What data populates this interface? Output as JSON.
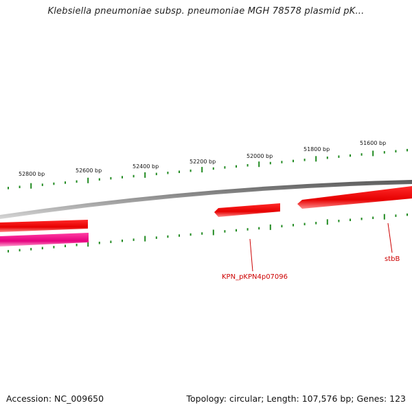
{
  "title": "Klebsiella pneumoniae subsp. pneumoniae MGH 78578 plasmid pK...",
  "colors": {
    "backbone": "#8a8a8a",
    "tick": "#228b22",
    "forward_gene": "#ff0000",
    "reverse_gene": "#ff1493",
    "gene_label": "#cc0000"
  },
  "scale": {
    "labels": [
      "52800 bp",
      "52600 bp",
      "52400 bp",
      "52200 bp",
      "52000 bp",
      "51800 bp",
      "51600 bp"
    ]
  },
  "genes": [
    {
      "label": "KPN_pKPN4p07096",
      "strand": "forward"
    },
    {
      "label": "stbB",
      "strand": "forward"
    }
  ],
  "footer": {
    "accession": "Accession: NC_009650",
    "summary": "Topology: circular; Length: 107,576 bp; Genes: 123"
  }
}
